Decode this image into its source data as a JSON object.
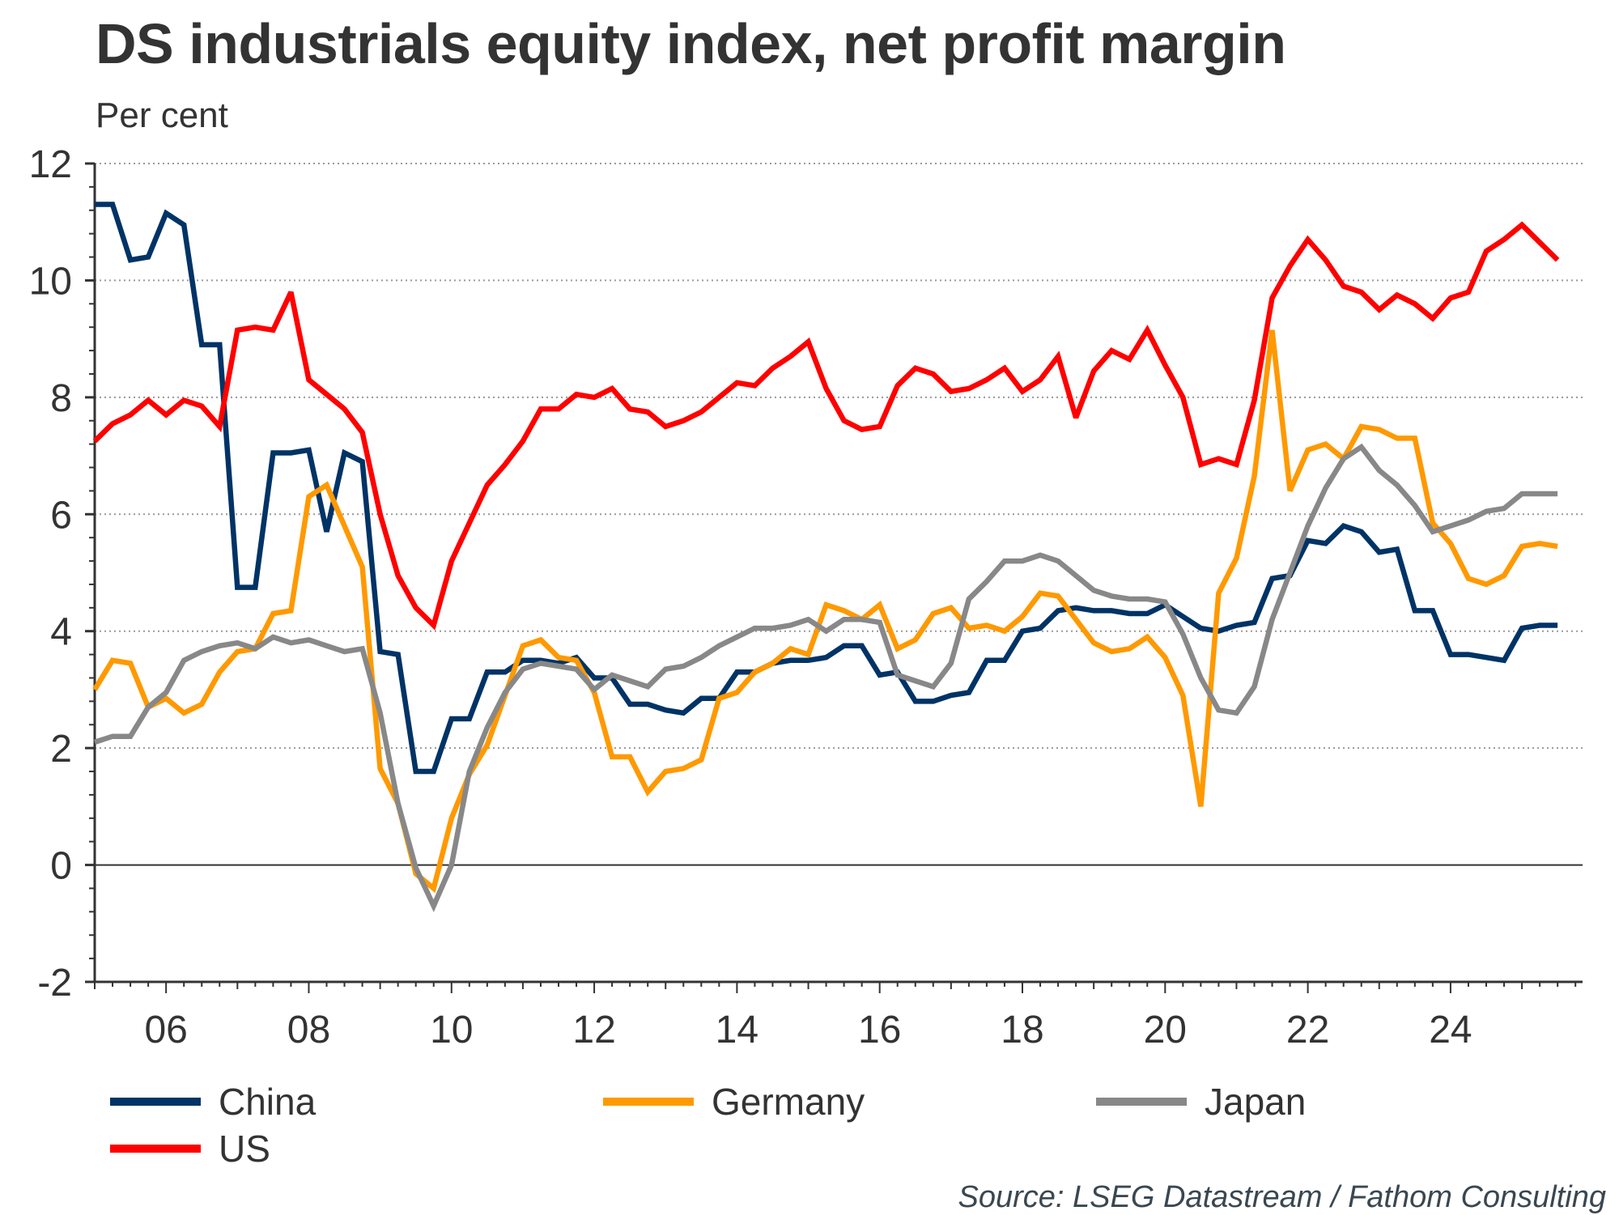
{
  "header": {
    "title": "DS industrials equity index, net profit margin",
    "subtitle": "Per cent"
  },
  "source": "Source: LSEG Datastream / Fathom Consulting",
  "chart_data": {
    "type": "line",
    "title": "DS industrials equity index, net profit margin",
    "ylabel": "Per cent",
    "xlabel": "",
    "ylim": [
      -2,
      12
    ],
    "xlim": [
      2005,
      2025.85
    ],
    "yticks": [
      -2,
      0,
      2,
      4,
      6,
      8,
      10,
      12
    ],
    "xticks": [
      {
        "value": 2006,
        "label": "06"
      },
      {
        "value": 2008,
        "label": "08"
      },
      {
        "value": 2010,
        "label": "10"
      },
      {
        "value": 2012,
        "label": "12"
      },
      {
        "value": 2014,
        "label": "14"
      },
      {
        "value": 2016,
        "label": "16"
      },
      {
        "value": 2018,
        "label": "18"
      },
      {
        "value": 2020,
        "label": "20"
      },
      {
        "value": 2022,
        "label": "22"
      },
      {
        "value": 2024,
        "label": "24"
      }
    ],
    "grid": true,
    "frequency": "quarterly",
    "x_start": 2005,
    "x_step": 0.25,
    "legend_position": "bottom",
    "series": [
      {
        "name": "China",
        "color": "#003366",
        "values": [
          11.3,
          11.3,
          10.35,
          10.4,
          11.15,
          10.95,
          8.9,
          8.9,
          4.75,
          4.75,
          7.05,
          7.05,
          7.1,
          5.7,
          7.05,
          6.9,
          3.65,
          3.6,
          1.6,
          1.6,
          2.5,
          2.5,
          3.3,
          3.3,
          3.5,
          3.5,
          3.45,
          3.55,
          3.2,
          3.2,
          2.75,
          2.75,
          2.65,
          2.6,
          2.85,
          2.85,
          3.3,
          3.3,
          3.45,
          3.5,
          3.5,
          3.55,
          3.75,
          3.75,
          3.25,
          3.3,
          2.8,
          2.8,
          2.9,
          2.95,
          3.5,
          3.5,
          4.0,
          4.05,
          4.35,
          4.4,
          4.35,
          4.35,
          4.3,
          4.3,
          4.45,
          4.25,
          4.05,
          4.0,
          4.1,
          4.15,
          4.9,
          4.95,
          5.55,
          5.5,
          5.8,
          5.7,
          5.35,
          5.4,
          4.35,
          4.35,
          3.6,
          3.6,
          3.55,
          3.5,
          4.05,
          4.1,
          4.1
        ]
      },
      {
        "name": "Germany",
        "color": "#ff9900",
        "values": [
          3.0,
          3.5,
          3.45,
          2.7,
          2.85,
          2.6,
          2.75,
          3.3,
          3.65,
          3.7,
          4.3,
          4.35,
          6.3,
          6.5,
          5.8,
          5.1,
          1.65,
          1.05,
          -0.15,
          -0.4,
          0.8,
          1.55,
          2.05,
          2.9,
          3.75,
          3.85,
          3.55,
          3.5,
          2.95,
          1.85,
          1.85,
          1.25,
          1.6,
          1.65,
          1.8,
          2.85,
          2.95,
          3.3,
          3.45,
          3.7,
          3.6,
          4.45,
          4.35,
          4.2,
          4.45,
          3.7,
          3.85,
          4.3,
          4.4,
          4.05,
          4.1,
          4.0,
          4.25,
          4.65,
          4.6,
          4.2,
          3.8,
          3.65,
          3.7,
          3.9,
          3.55,
          2.9,
          1.0,
          4.65,
          5.25,
          6.65,
          9.15,
          6.4,
          7.1,
          7.2,
          6.95,
          7.5,
          7.45,
          7.3,
          7.3,
          5.85,
          5.5,
          4.9,
          4.8,
          4.95,
          5.45,
          5.5,
          5.45
        ]
      },
      {
        "name": "Japan",
        "color": "#888888",
        "values": [
          2.1,
          2.2,
          2.2,
          2.7,
          2.95,
          3.5,
          3.65,
          3.75,
          3.8,
          3.7,
          3.9,
          3.8,
          3.85,
          3.75,
          3.65,
          3.7,
          2.6,
          1.05,
          -0.05,
          -0.7,
          0.0,
          1.6,
          2.35,
          2.95,
          3.35,
          3.45,
          3.4,
          3.35,
          3.0,
          3.25,
          3.15,
          3.05,
          3.35,
          3.4,
          3.55,
          3.75,
          3.9,
          4.05,
          4.05,
          4.1,
          4.2,
          4.0,
          4.2,
          4.2,
          4.15,
          3.25,
          3.15,
          3.05,
          3.45,
          4.55,
          4.85,
          5.2,
          5.2,
          5.3,
          5.2,
          4.95,
          4.7,
          4.6,
          4.55,
          4.55,
          4.5,
          3.95,
          3.2,
          2.65,
          2.6,
          3.05,
          4.2,
          5.0,
          5.8,
          6.45,
          6.95,
          7.15,
          6.75,
          6.5,
          6.15,
          5.7,
          5.8,
          5.9,
          6.05,
          6.1,
          6.35,
          6.35,
          6.35
        ]
      },
      {
        "name": "US",
        "color": "#ff0000",
        "values": [
          7.25,
          7.55,
          7.7,
          7.95,
          7.7,
          7.95,
          7.85,
          7.5,
          9.15,
          9.2,
          9.15,
          9.8,
          8.3,
          8.05,
          7.8,
          7.4,
          6.0,
          4.95,
          4.4,
          4.1,
          5.2,
          5.85,
          6.5,
          6.85,
          7.25,
          7.8,
          7.8,
          8.05,
          8.0,
          8.15,
          7.8,
          7.75,
          7.5,
          7.6,
          7.75,
          8.0,
          8.25,
          8.2,
          8.5,
          8.7,
          8.95,
          8.15,
          7.6,
          7.45,
          7.5,
          8.2,
          8.5,
          8.4,
          8.1,
          8.15,
          8.3,
          8.5,
          8.1,
          8.3,
          8.7,
          7.65,
          8.45,
          8.8,
          8.65,
          9.15,
          8.55,
          8.0,
          6.85,
          6.95,
          6.85,
          7.95,
          9.7,
          10.25,
          10.7,
          10.35,
          9.9,
          9.8,
          9.5,
          9.75,
          9.6,
          9.35,
          9.7,
          9.8,
          10.5,
          10.7,
          10.95,
          10.65,
          10.35
        ]
      }
    ]
  }
}
